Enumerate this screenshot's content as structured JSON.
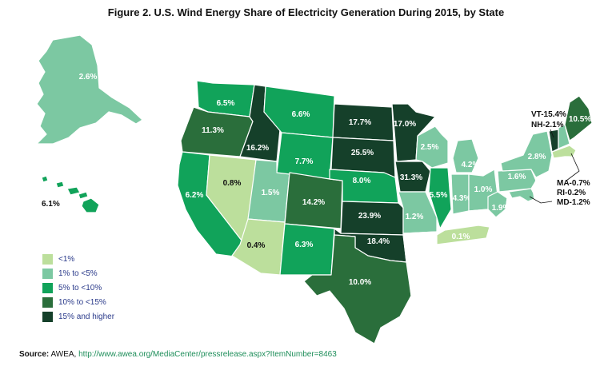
{
  "title": "Figure 2. U.S. Wind Energy Share of Electricity Generation During 2015, by State",
  "colors": {
    "lt1": "#bcdf9c",
    "c1to5": "#7cc8a2",
    "c5to10": "#11a35a",
    "c10to15": "#2a6e3b",
    "c15plus": "#15402a",
    "none": "#ffffff",
    "outline": "#1a1a1a"
  },
  "legend": [
    {
      "label": "<1%",
      "color": "#bcdf9c"
    },
    {
      "label": "1% to <5%",
      "color": "#7cc8a2"
    },
    {
      "label": "5% to <10%",
      "color": "#11a35a"
    },
    {
      "label": "10% to <15%",
      "color": "#2a6e3b"
    },
    {
      "label": "15% and higher",
      "color": "#15402a"
    }
  ],
  "states": {
    "AK": "2.6%",
    "HI": "6.1%",
    "WA": "6.5%",
    "OR": "11.3%",
    "CA": "6.2%",
    "ID": "16.2%",
    "NV": "0.8%",
    "UT": "1.5%",
    "AZ": "0.4%",
    "MT": "6.6%",
    "WY": "7.7%",
    "CO": "14.2%",
    "NM": "6.3%",
    "ND": "17.7%",
    "SD": "25.5%",
    "NE": "8.0%",
    "KS": "23.9%",
    "OK": "18.4%",
    "TX": "10.0%",
    "MN": "17.0%",
    "IA": "31.3%",
    "MO": "1.2%",
    "WI": "2.5%",
    "IL": "5.5%",
    "MI": "4.2%",
    "IN": "4.3%",
    "OH": "1.0%",
    "WV": "1.9%",
    "TN": "0.1%",
    "PA": "1.6%",
    "NY": "2.8%",
    "ME": "10.5%"
  },
  "callouts": {
    "vt_nh": [
      "VT-15.4%",
      "NH-2.1%"
    ],
    "ma_ri_md": [
      "MA-0.7%",
      "RI-0.2%",
      "MD-1.2%"
    ]
  },
  "source": {
    "label": "Source:",
    "text": " AWEA, ",
    "url": "http://www.awea.org/MediaCenter/pressrelease.aspx?ItemNumber=8463"
  }
}
